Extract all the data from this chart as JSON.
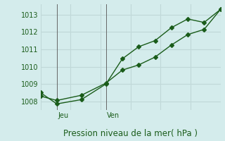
{
  "xlabel": "Pression niveau de la mer( hPa )",
  "background_color": "#d4ecec",
  "grid_color": "#c0d8d8",
  "line_color": "#1a5c1a",
  "ylim": [
    1007.5,
    1013.6
  ],
  "yticks": [
    1008,
    1009,
    1010,
    1011,
    1012,
    1013
  ],
  "xlim": [
    0,
    11
  ],
  "x_jeu": 1,
  "x_ven": 4,
  "series1_x": [
    0,
    1,
    2.5,
    4,
    5,
    6,
    7,
    8,
    9,
    10,
    11
  ],
  "series1_y": [
    1008.5,
    1007.85,
    1008.1,
    1009.0,
    1010.45,
    1011.15,
    1011.5,
    1012.25,
    1012.75,
    1012.55,
    1013.3
  ],
  "series2_x": [
    0,
    1,
    2.5,
    4,
    5,
    6,
    7,
    8,
    9,
    10,
    11
  ],
  "series2_y": [
    1008.3,
    1008.05,
    1008.35,
    1009.05,
    1009.8,
    1010.1,
    1010.55,
    1011.25,
    1011.85,
    1012.15,
    1013.3
  ],
  "marker_size": 3.0,
  "linewidth": 1.0,
  "tick_label_fontsize": 7,
  "xlabel_fontsize": 8.5,
  "day_label_fontsize": 7
}
